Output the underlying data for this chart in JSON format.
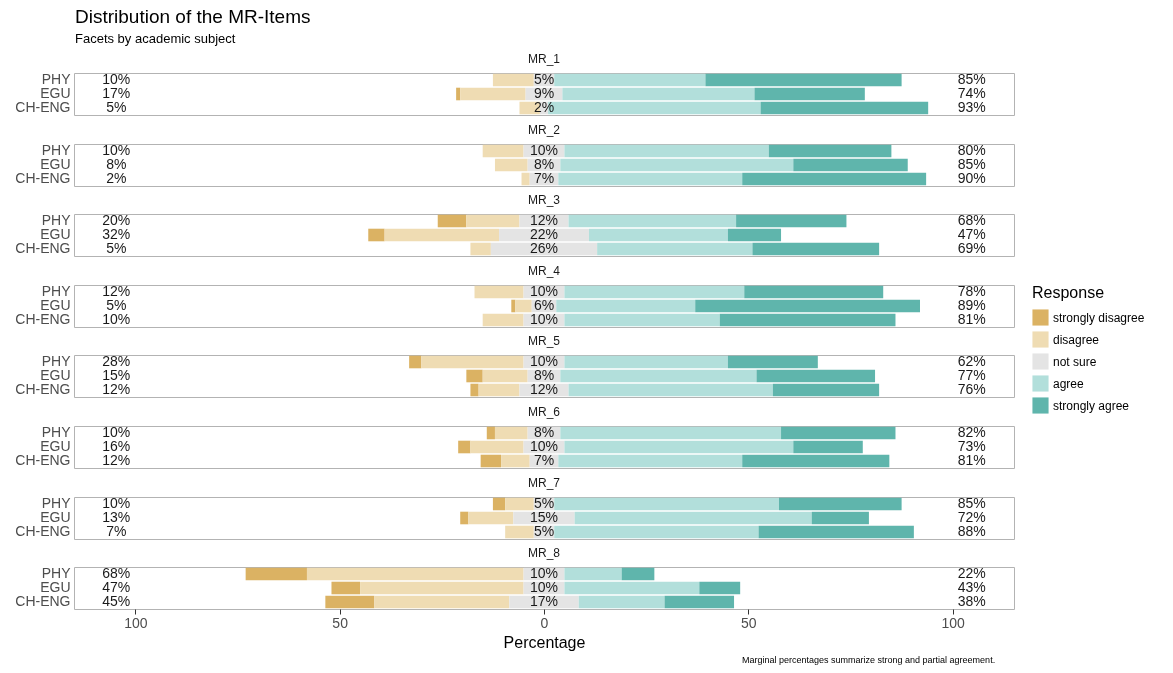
{
  "chart_data": [
    {
      "type": "other",
      "title": "Distribution of the MR-Items",
      "subtitle": "Facets by academic subject",
      "annotations": [
        "Marginal percentages summarize strong and partial agreement."
      ]
    },
    {
      "type": "bar",
      "title": "MR_1",
      "orientation": "horizontal",
      "categories": [
        "PHY",
        "EGU",
        "CH-ENG"
      ],
      "xlim": [
        -115,
        115
      ],
      "tick_labels": "y",
      "series": [
        {
          "color": "#dbb263",
          "values": [
            null,
            1,
            null
          ],
          "base": [
            null,
            -21.5,
            null
          ]
        },
        {
          "color": "#efdcb3",
          "values": [
            10,
            16,
            5
          ],
          "base": [
            -12.5,
            -20.5,
            -6
          ]
        },
        {
          "color": "#e4e4e4",
          "values": [
            5,
            9,
            2
          ],
          "base": [
            -2.5,
            -4.5,
            -1
          ],
          "value_labels": [
            "5%",
            "9%",
            "2%"
          ]
        },
        {
          "color": "#b2dfdb",
          "values": [
            37,
            47,
            52
          ],
          "base": [
            2.5,
            4.5,
            1
          ]
        },
        {
          "color": "#5fb5ac",
          "values": [
            48,
            27,
            41
          ],
          "base": [
            39.5,
            51.5,
            53
          ]
        }
      ],
      "annotations": [
        "10%",
        "17%",
        "5%",
        "85%",
        "74%",
        "93%"
      ]
    },
    {
      "type": "bar",
      "title": "MR_2",
      "orientation": "horizontal",
      "categories": [
        "PHY",
        "EGU",
        "CH-ENG"
      ],
      "xlim": [
        -115,
        115
      ],
      "tick_labels": "y",
      "series": [
        {
          "color": "#dbb263",
          "values": [
            null,
            null,
            null
          ],
          "base": [
            null,
            null,
            null
          ]
        },
        {
          "color": "#efdcb3",
          "values": [
            10,
            8,
            2
          ],
          "base": [
            -15,
            -12,
            -5.5
          ]
        },
        {
          "color": "#e4e4e4",
          "values": [
            10,
            8,
            7
          ],
          "base": [
            -5,
            -4,
            -3.5
          ],
          "value_labels": [
            "10%",
            "8%",
            "7%"
          ]
        },
        {
          "color": "#b2dfdb",
          "values": [
            50,
            57,
            45
          ],
          "base": [
            5,
            4,
            3.5
          ]
        },
        {
          "color": "#5fb5ac",
          "values": [
            30,
            28,
            45
          ],
          "base": [
            55,
            61,
            48.5
          ]
        }
      ],
      "annotations": [
        "10%",
        "8%",
        "2%",
        "80%",
        "85%",
        "90%"
      ]
    },
    {
      "type": "bar",
      "title": "MR_3",
      "orientation": "horizontal",
      "categories": [
        "PHY",
        "EGU",
        "CH-ENG"
      ],
      "xlim": [
        -115,
        115
      ],
      "tick_labels": "y",
      "series": [
        {
          "color": "#dbb263",
          "values": [
            7,
            4,
            null
          ],
          "base": [
            -26,
            -43,
            null
          ]
        },
        {
          "color": "#efdcb3",
          "values": [
            13,
            28,
            5
          ],
          "base": [
            -19,
            -39,
            -18
          ]
        },
        {
          "color": "#e4e4e4",
          "values": [
            12,
            22,
            26
          ],
          "base": [
            -6,
            -11,
            -13
          ],
          "value_labels": [
            "12%",
            "22%",
            "26%"
          ]
        },
        {
          "color": "#b2dfdb",
          "values": [
            41,
            34,
            38
          ],
          "base": [
            6,
            11,
            13
          ]
        },
        {
          "color": "#5fb5ac",
          "values": [
            27,
            13,
            31
          ],
          "base": [
            47,
            45,
            51
          ]
        }
      ],
      "annotations": [
        "20%",
        "32%",
        "5%",
        "68%",
        "47%",
        "69%"
      ]
    },
    {
      "type": "bar",
      "title": "MR_4",
      "orientation": "horizontal",
      "categories": [
        "PHY",
        "EGU",
        "CH-ENG"
      ],
      "xlim": [
        -115,
        115
      ],
      "tick_labels": "y",
      "legend": "right",
      "legend_title": "Response",
      "series": [
        {
          "name": "strongly disagree",
          "color": "#dbb263",
          "values": [
            null,
            1,
            null
          ],
          "base": [
            null,
            -8,
            null
          ]
        },
        {
          "name": "disagree",
          "color": "#efdcb3",
          "values": [
            12,
            4,
            10
          ],
          "base": [
            -17,
            -7,
            -15
          ]
        },
        {
          "name": "not sure",
          "color": "#e4e4e4",
          "values": [
            10,
            6,
            10
          ],
          "base": [
            -5,
            -3,
            -5
          ],
          "value_labels": [
            "10%",
            "6%",
            "10%"
          ]
        },
        {
          "name": "agree",
          "color": "#b2dfdb",
          "values": [
            44,
            34,
            38
          ],
          "base": [
            5,
            3,
            5
          ]
        },
        {
          "name": "strongly agree",
          "color": "#5fb5ac",
          "values": [
            34,
            55,
            43
          ],
          "base": [
            49,
            37,
            43
          ]
        }
      ],
      "annotations": [
        "12%",
        "5%",
        "10%",
        "78%",
        "89%",
        "81%"
      ]
    },
    {
      "type": "bar",
      "title": "MR_5",
      "orientation": "horizontal",
      "categories": [
        "PHY",
        "EGU",
        "CH-ENG"
      ],
      "xlim": [
        -115,
        115
      ],
      "tick_labels": "y",
      "series": [
        {
          "color": "#dbb263",
          "values": [
            3,
            4,
            2
          ],
          "base": [
            -33,
            -19,
            -18
          ]
        },
        {
          "color": "#efdcb3",
          "values": [
            25,
            11,
            10
          ],
          "base": [
            -30,
            -15,
            -16
          ]
        },
        {
          "color": "#e4e4e4",
          "values": [
            10,
            8,
            12
          ],
          "base": [
            -5,
            -4,
            -6
          ],
          "value_labels": [
            "10%",
            "8%",
            "12%"
          ]
        },
        {
          "color": "#b2dfdb",
          "values": [
            40,
            48,
            50
          ],
          "base": [
            5,
            4,
            6
          ]
        },
        {
          "color": "#5fb5ac",
          "values": [
            22,
            29,
            26
          ],
          "base": [
            45,
            52,
            56
          ]
        }
      ],
      "annotations": [
        "28%",
        "15%",
        "12%",
        "62%",
        "77%",
        "76%"
      ]
    },
    {
      "type": "bar",
      "title": "MR_6",
      "orientation": "horizontal",
      "categories": [
        "PHY",
        "EGU",
        "CH-ENG"
      ],
      "xlim": [
        -115,
        115
      ],
      "tick_labels": "y",
      "series": [
        {
          "color": "#dbb263",
          "values": [
            2,
            3,
            5
          ],
          "base": [
            -14,
            -21,
            -15.5
          ]
        },
        {
          "color": "#efdcb3",
          "values": [
            8,
            13,
            7
          ],
          "base": [
            -12,
            -18,
            -10.5
          ]
        },
        {
          "color": "#e4e4e4",
          "values": [
            8,
            10,
            7
          ],
          "base": [
            -4,
            -5,
            -3.5
          ],
          "value_labels": [
            "8%",
            "10%",
            "7%"
          ]
        },
        {
          "color": "#b2dfdb",
          "values": [
            54,
            56,
            45
          ],
          "base": [
            4,
            5,
            3.5
          ]
        },
        {
          "color": "#5fb5ac",
          "values": [
            28,
            17,
            36
          ],
          "base": [
            58,
            61,
            48.5
          ]
        }
      ],
      "annotations": [
        "10%",
        "16%",
        "12%",
        "82%",
        "73%",
        "81%"
      ]
    },
    {
      "type": "bar",
      "title": "MR_7",
      "orientation": "horizontal",
      "categories": [
        "PHY",
        "EGU",
        "CH-ENG"
      ],
      "xlim": [
        -115,
        115
      ],
      "tick_labels": "y",
      "series": [
        {
          "color": "#dbb263",
          "values": [
            3,
            2,
            null
          ],
          "base": [
            -12.5,
            -20.5,
            null
          ]
        },
        {
          "color": "#efdcb3",
          "values": [
            7,
            11,
            7
          ],
          "base": [
            -9.5,
            -18.5,
            -9.5
          ]
        },
        {
          "color": "#e4e4e4",
          "values": [
            5,
            15,
            5
          ],
          "base": [
            -2.5,
            -7.5,
            -2.5
          ],
          "value_labels": [
            "5%",
            "15%",
            "5%"
          ]
        },
        {
          "color": "#b2dfdb",
          "values": [
            55,
            58,
            50
          ],
          "base": [
            2.5,
            7.5,
            2.5
          ]
        },
        {
          "color": "#5fb5ac",
          "values": [
            30,
            14,
            38
          ],
          "base": [
            57.5,
            65.5,
            52.5
          ]
        }
      ],
      "annotations": [
        "10%",
        "13%",
        "7%",
        "85%",
        "72%",
        "88%"
      ]
    },
    {
      "type": "bar",
      "title": "MR_8",
      "orientation": "horizontal",
      "categories": [
        "PHY",
        "EGU",
        "CH-ENG"
      ],
      "xlim": [
        -115,
        115
      ],
      "xticks": [
        {
          "value": -100,
          "label": "100"
        },
        {
          "value": -50,
          "label": "50"
        },
        0,
        50,
        100
      ],
      "xlabel": "Percentage",
      "series": [
        {
          "color": "#dbb263",
          "values": [
            15,
            7,
            12
          ],
          "base": [
            -73,
            -52,
            -53.5
          ]
        },
        {
          "color": "#efdcb3",
          "values": [
            53,
            40,
            33
          ],
          "base": [
            -58,
            -45,
            -41.5
          ]
        },
        {
          "color": "#e4e4e4",
          "values": [
            10,
            10,
            17
          ],
          "base": [
            -5,
            -5,
            -8.5
          ],
          "value_labels": [
            "10%",
            "10%",
            "17%"
          ]
        },
        {
          "color": "#b2dfdb",
          "values": [
            14,
            33,
            21
          ],
          "base": [
            5,
            5,
            8.5
          ]
        },
        {
          "color": "#5fb5ac",
          "values": [
            8,
            10,
            17
          ],
          "base": [
            19,
            38,
            29.5
          ]
        }
      ],
      "annotations": [
        "68%",
        "47%",
        "45%",
        "22%",
        "43%",
        "38%"
      ]
    }
  ]
}
